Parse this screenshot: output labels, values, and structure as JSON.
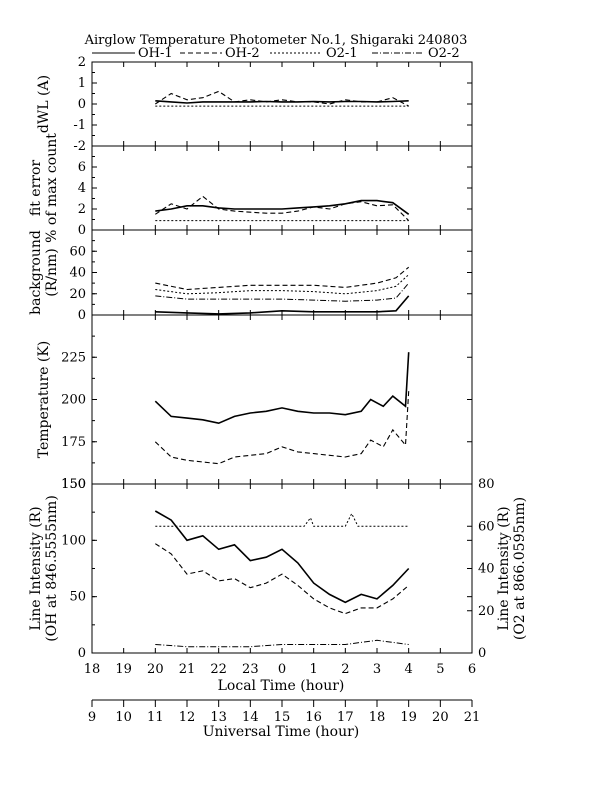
{
  "figure": {
    "title": "Airglow Temperature Photometer No.1, Shigaraki   240803",
    "legend": [
      {
        "label": "OH-1",
        "dash": "solid"
      },
      {
        "label": "OH-2",
        "dash": "dash"
      },
      {
        "label": "O2-1",
        "dash": "dot"
      },
      {
        "label": "O2-2",
        "dash": "dashdot"
      }
    ],
    "x_top": {
      "label": "Local Time (hour)",
      "ticks": [
        "18",
        "19",
        "20",
        "21",
        "22",
        "23",
        "0",
        "1",
        "2",
        "3",
        "4",
        "5",
        "6"
      ],
      "range": [
        18,
        30
      ]
    },
    "x_bottom": {
      "label": "Universal Time (hour)",
      "ticks": [
        "9",
        "10",
        "11",
        "12",
        "13",
        "14",
        "15",
        "16",
        "17",
        "18",
        "19",
        "20",
        "21"
      ],
      "range": [
        9,
        21
      ]
    }
  },
  "chart_data": [
    {
      "type": "line",
      "panel": "dwl",
      "ylabel": "dWL (A)",
      "ylim": [
        -2,
        2
      ],
      "yticks": [
        "2",
        "1",
        "0",
        "-1",
        "-2"
      ],
      "series": [
        {
          "name": "OH-1",
          "x": [
            20,
            20.5,
            21,
            21.5,
            22,
            22.5,
            23,
            23.5,
            24,
            24.5,
            25,
            25.5,
            26,
            26.5,
            27,
            27.5,
            28
          ],
          "y": [
            0.15,
            0.1,
            0.05,
            0.1,
            0.1,
            0.1,
            0.1,
            0.12,
            0.1,
            0.1,
            0.12,
            0.1,
            0.12,
            0.12,
            0.1,
            0.12,
            0.15
          ]
        },
        {
          "name": "OH-2",
          "x": [
            20,
            20.5,
            21,
            21.5,
            22,
            22.5,
            23,
            23.5,
            24,
            24.5,
            25,
            25.5,
            26,
            26.5,
            27,
            27.5,
            28
          ],
          "y": [
            0.0,
            0.5,
            0.2,
            0.3,
            0.6,
            0.1,
            0.2,
            0.1,
            0.2,
            0.1,
            0.1,
            0.0,
            0.2,
            0.1,
            0.1,
            0.3,
            -0.1
          ]
        },
        {
          "name": "O2-1",
          "x": [
            20,
            21,
            22,
            23,
            24,
            25,
            26,
            27,
            28
          ],
          "y": [
            -0.1,
            -0.1,
            -0.1,
            -0.1,
            -0.1,
            -0.1,
            -0.1,
            -0.1,
            -0.1
          ]
        }
      ]
    },
    {
      "type": "line",
      "panel": "fit_error",
      "ylabel": "fit error\n% of max count",
      "ylim": [
        0,
        8
      ],
      "yticks": [
        "6",
        "4",
        "2",
        "0"
      ],
      "series": [
        {
          "name": "OH-1",
          "x": [
            20,
            20.5,
            21,
            21.5,
            22,
            22.5,
            23,
            23.5,
            24,
            24.5,
            25,
            25.5,
            26,
            26.5,
            27,
            27.5,
            28
          ],
          "y": [
            1.8,
            2.0,
            2.3,
            2.3,
            2.1,
            2.0,
            2.0,
            2.0,
            2.0,
            2.1,
            2.2,
            2.3,
            2.5,
            2.8,
            2.8,
            2.6,
            1.5
          ]
        },
        {
          "name": "OH-2",
          "x": [
            20,
            20.5,
            21,
            21.5,
            22,
            22.5,
            23,
            23.5,
            24,
            24.5,
            25,
            25.5,
            26,
            26.5,
            27,
            27.5,
            28
          ],
          "y": [
            1.5,
            2.5,
            2.0,
            3.2,
            2.0,
            1.8,
            1.7,
            1.6,
            1.6,
            1.8,
            2.2,
            2.0,
            2.5,
            2.7,
            2.3,
            2.4,
            0.9
          ]
        },
        {
          "name": "O2-1",
          "x": [
            20,
            21,
            22,
            23,
            24,
            25,
            26,
            27,
            28
          ],
          "y": [
            0.9,
            0.9,
            0.9,
            0.9,
            0.9,
            0.9,
            0.9,
            0.9,
            0.9
          ]
        }
      ]
    },
    {
      "type": "line",
      "panel": "background",
      "ylabel": "background\n(R/nm)",
      "ylim": [
        0,
        80
      ],
      "yticks": [
        "60",
        "40",
        "20",
        "0"
      ],
      "series": [
        {
          "name": "OH-1",
          "x": [
            20,
            21,
            22,
            23,
            24,
            25,
            26,
            27,
            27.6,
            28
          ],
          "y": [
            3,
            2,
            1,
            2,
            4,
            3,
            3,
            3,
            4,
            18
          ]
        },
        {
          "name": "OH-2",
          "x": [
            20,
            21,
            22,
            23,
            24,
            25,
            26,
            27,
            27.6,
            28
          ],
          "y": [
            30,
            24,
            26,
            28,
            28,
            28,
            26,
            30,
            35,
            45
          ]
        },
        {
          "name": "O2-1",
          "x": [
            20,
            21,
            22,
            23,
            24,
            25,
            26,
            27,
            27.6,
            28
          ],
          "y": [
            24,
            20,
            21,
            23,
            23,
            22,
            20,
            23,
            27,
            38
          ]
        },
        {
          "name": "O2-2",
          "x": [
            20,
            21,
            22,
            23,
            24,
            25,
            26,
            27,
            27.6,
            28
          ],
          "y": [
            18,
            15,
            15,
            15,
            15,
            14,
            13,
            14,
            16,
            30
          ]
        }
      ]
    },
    {
      "type": "line",
      "panel": "temperature",
      "ylabel": "Temperature (K)",
      "ylim": [
        150,
        250
      ],
      "yticks": [
        "225",
        "200",
        "175",
        "150"
      ],
      "series": [
        {
          "name": "OH-1",
          "x": [
            20,
            20.5,
            21,
            21.5,
            22,
            22.5,
            23,
            23.5,
            24,
            24.5,
            25,
            25.5,
            26,
            26.5,
            26.8,
            27.2,
            27.5,
            27.9,
            28
          ],
          "y": [
            199,
            190,
            189,
            188,
            186,
            190,
            192,
            193,
            195,
            193,
            192,
            192,
            191,
            193,
            200,
            196,
            202,
            196,
            228
          ]
        },
        {
          "name": "OH-2",
          "x": [
            20,
            20.5,
            21,
            21.5,
            22,
            22.5,
            23,
            23.5,
            24,
            24.5,
            25,
            25.5,
            26,
            26.5,
            26.8,
            27.2,
            27.5,
            27.9,
            28
          ],
          "y": [
            175,
            166,
            164,
            163,
            162,
            166,
            167,
            168,
            172,
            169,
            168,
            167,
            166,
            168,
            176,
            172,
            182,
            173,
            205
          ]
        }
      ]
    },
    {
      "type": "line",
      "panel": "line_intensity",
      "ylabel": "Line Intensity (R)\n(OH at 846.5555nm)",
      "y2label": "Line Intensity (R)\n(O2 at 866.0595nm)",
      "ylim": [
        0,
        150
      ],
      "y2lim": [
        0,
        80
      ],
      "yticks": [
        "150",
        "100",
        "50",
        "0"
      ],
      "y2ticks": [
        "80",
        "60",
        "40",
        "20",
        "0"
      ],
      "series": [
        {
          "name": "OH-1",
          "x": [
            20,
            20.5,
            21,
            21.5,
            22,
            22.5,
            23,
            23.5,
            24,
            24.5,
            25,
            25.5,
            26,
            26.5,
            27,
            27.5,
            28
          ],
          "y": [
            126,
            118,
            100,
            104,
            92,
            96,
            82,
            85,
            92,
            80,
            62,
            52,
            45,
            52,
            48,
            60,
            75
          ]
        },
        {
          "name": "OH-2",
          "x": [
            20,
            20.5,
            21,
            21.5,
            22,
            22.5,
            23,
            23.5,
            24,
            24.5,
            25,
            25.5,
            26,
            26.5,
            27,
            27.5,
            28
          ],
          "y": [
            97,
            88,
            70,
            73,
            64,
            66,
            58,
            62,
            70,
            60,
            48,
            40,
            35,
            40,
            40,
            48,
            60
          ]
        },
        {
          "name": "O2-1",
          "axis": "right",
          "x": [
            20,
            21,
            22,
            23,
            24,
            24.7,
            24.9,
            25,
            26,
            26.2,
            26.4,
            27,
            28
          ],
          "y": [
            60,
            60,
            60,
            60,
            60,
            60,
            64,
            60,
            60,
            66,
            60,
            60,
            60
          ]
        },
        {
          "name": "O2-2",
          "axis": "right",
          "x": [
            20,
            21,
            22,
            23,
            24,
            25,
            26,
            27,
            28
          ],
          "y": [
            4,
            3,
            3,
            3,
            4,
            4,
            4,
            6,
            4
          ]
        }
      ]
    }
  ]
}
